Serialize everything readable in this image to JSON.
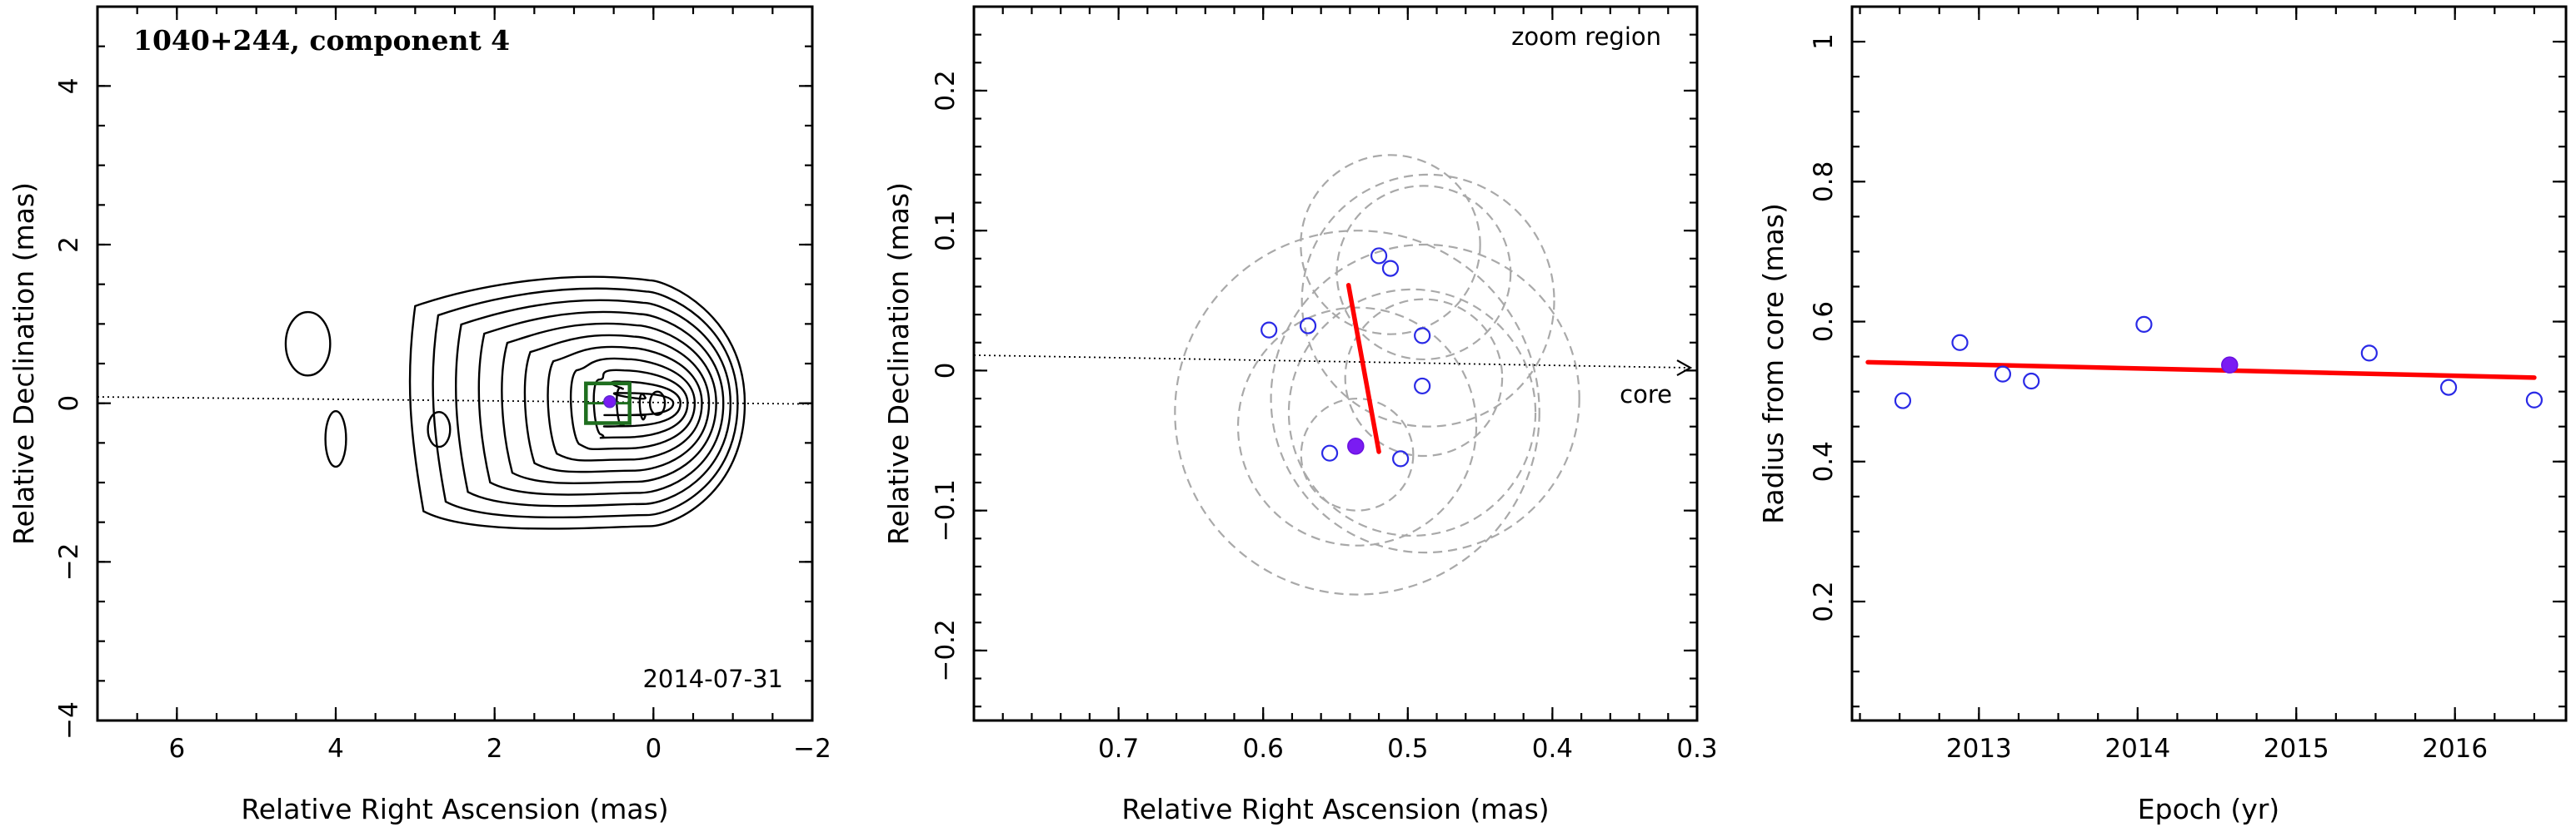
{
  "chart_data": [
    {
      "type": "contour",
      "title": "1040+244, component 4",
      "xlabel": "Relative Right Ascension (mas)",
      "ylabel": "Relative Declination (mas)",
      "annotation": "2014-07-31",
      "xlim": [
        7,
        -2
      ],
      "ylim": [
        -4,
        5
      ],
      "x_ticks": [
        6,
        4,
        2,
        0,
        -2
      ],
      "x_tick_labels": [
        "6",
        "4",
        "2",
        "0",
        "−2"
      ],
      "y_ticks": [
        -4,
        -2,
        0,
        2,
        4
      ],
      "y_tick_labels": [
        "−4",
        "−2",
        "0",
        "2",
        "4"
      ],
      "component_position": [
        0.55,
        0.02
      ],
      "zoom_box": {
        "x": [
          0.85,
          0.3
        ],
        "y": [
          -0.25,
          0.25
        ]
      },
      "jet_axis": [
        [
          7.0,
          0.08
        ],
        [
          -2.0,
          -0.01
        ]
      ],
      "contour_levels": 11,
      "colors": {
        "contour": "#000000",
        "zoom_box": "#1e6e1e",
        "component": "#7a1cf2"
      }
    },
    {
      "type": "scatter",
      "title": "zoom region",
      "xlabel": "Relative Right Ascension (mas)",
      "ylabel": "Relative Declination (mas)",
      "xlim": [
        0.8,
        0.3
      ],
      "ylim": [
        -0.25,
        0.26
      ],
      "x_ticks": [
        0.7,
        0.6,
        0.5,
        0.4,
        0.3
      ],
      "x_tick_labels": [
        "0.7",
        "0.6",
        "0.5",
        "0.4",
        "0.3"
      ],
      "y_ticks": [
        -0.2,
        -0.1,
        0,
        0.1,
        0.2
      ],
      "y_tick_labels": [
        "−0.2",
        "−0.1",
        "0",
        "0.1",
        "0.2"
      ],
      "annotation": "core",
      "core_axis": [
        [
          0.8,
          0.011
        ],
        [
          0.3,
          0.002
        ]
      ],
      "series": [
        {
          "marker": "open-circle",
          "points": [
            [
              0.596,
              0.029
            ],
            [
              0.569,
              0.032
            ],
            [
              0.52,
              0.082
            ],
            [
              0.512,
              0.073
            ],
            [
              0.49,
              0.025
            ],
            [
              0.49,
              -0.011
            ],
            [
              0.554,
              -0.059
            ],
            [
              0.505,
              -0.063
            ]
          ]
        },
        {
          "marker": "filled-circle",
          "points": [
            [
              0.536,
              -0.054
            ]
          ]
        }
      ],
      "fit_line": [
        [
          0.541,
          0.061
        ],
        [
          0.52,
          -0.058
        ]
      ],
      "error_circles": [
        {
          "center": [
            0.512,
            0.09
          ],
          "radius": 0.064
        },
        {
          "center": [
            0.489,
            0.07
          ],
          "radius": 0.062
        },
        {
          "center": [
            0.486,
            0.05
          ],
          "radius": 0.09
        },
        {
          "center": [
            0.535,
            -0.04
          ],
          "radius": 0.085
        },
        {
          "center": [
            0.535,
            -0.03
          ],
          "radius": 0.13
        },
        {
          "center": [
            0.488,
            -0.02
          ],
          "radius": 0.11
        },
        {
          "center": [
            0.535,
            -0.06
          ],
          "radius": 0.04
        },
        {
          "center": [
            0.497,
            -0.03
          ],
          "radius": 0.088
        },
        {
          "center": [
            0.489,
            -0.005
          ],
          "radius": 0.056
        }
      ],
      "colors": {
        "open_points": "#2a2ae6",
        "filled_point": "#7a1cf2",
        "fit": "#ff0000",
        "circles": "#a9a9a9"
      }
    },
    {
      "type": "scatter",
      "xlabel": "Epoch (yr)",
      "ylabel": "Radius from core (mas)",
      "xlim": [
        2012.2,
        2016.7
      ],
      "ylim": [
        0.03,
        1.05
      ],
      "x_ticks": [
        2013,
        2014,
        2015,
        2016
      ],
      "x_tick_labels": [
        "2013",
        "2014",
        "2015",
        "2016"
      ],
      "y_ticks": [
        0.2,
        0.4,
        0.6,
        0.8,
        1.0
      ],
      "y_tick_labels": [
        "0.2",
        "0.4",
        "0.6",
        "0.8",
        "1"
      ],
      "series": [
        {
          "marker": "open-circle",
          "points": [
            [
              2012.52,
              0.487
            ],
            [
              2012.88,
              0.57
            ],
            [
              2013.15,
              0.525
            ],
            [
              2013.33,
              0.515
            ],
            [
              2014.04,
              0.596
            ],
            [
              2015.46,
              0.555
            ],
            [
              2015.96,
              0.506
            ],
            [
              2016.5,
              0.488
            ]
          ]
        },
        {
          "marker": "filled-circle",
          "points": [
            [
              2014.58,
              0.538
            ]
          ]
        }
      ],
      "fit_line": [
        [
          2012.3,
          0.542
        ],
        [
          2016.5,
          0.52
        ]
      ],
      "colors": {
        "open_points": "#2a2ae6",
        "filled_point": "#7a1cf2",
        "fit": "#ff0000"
      }
    }
  ]
}
